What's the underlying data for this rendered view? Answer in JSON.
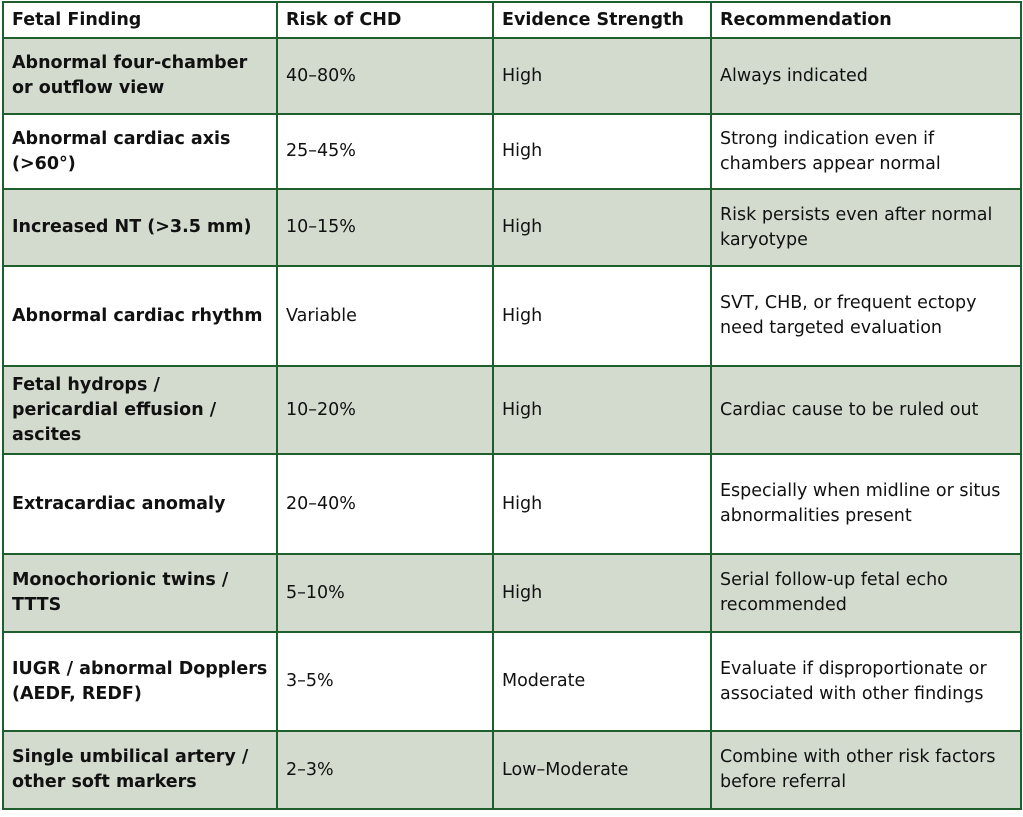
{
  "table": {
    "header": [
      "Fetal Finding",
      "Risk of CHD",
      "Evidence Strength",
      "Recommendation"
    ],
    "rows": [
      [
        "Abnormal four-chamber or outflow view",
        "40–80%",
        "High",
        "Always indicated"
      ],
      [
        "Abnormal cardiac axis (>60°)",
        "25–45%",
        "High",
        "Strong indication even if chambers appear normal"
      ],
      [
        "Increased NT (>3.5 mm)",
        "10–15%",
        "High",
        "Risk persists even after normal karyotype"
      ],
      [
        "Abnormal cardiac rhythm",
        "Variable",
        "High",
        "SVT, CHB, or frequent ectopy need targeted evaluation"
      ],
      [
        "Fetal hydrops / pericardial effusion / ascites",
        "10–20%",
        "High",
        "Cardiac cause to be ruled out"
      ],
      [
        "Extracardiac anomaly",
        "20–40%",
        "High",
        "Especially when midline or situs abnormalities present"
      ],
      [
        "Monochorionic twins / TTTS",
        "5–10%",
        "High",
        "Serial follow-up fetal echo recommended"
      ],
      [
        "IUGR / abnormal Dopplers (AEDF, REDF)",
        "3–5%",
        "Moderate",
        "Evaluate if disproportionate or associated with other findings"
      ],
      [
        "Single umbilical artery / other soft markers",
        "2–3%",
        "Low–Moderate",
        "Combine with other risk factors before referral"
      ]
    ]
  }
}
